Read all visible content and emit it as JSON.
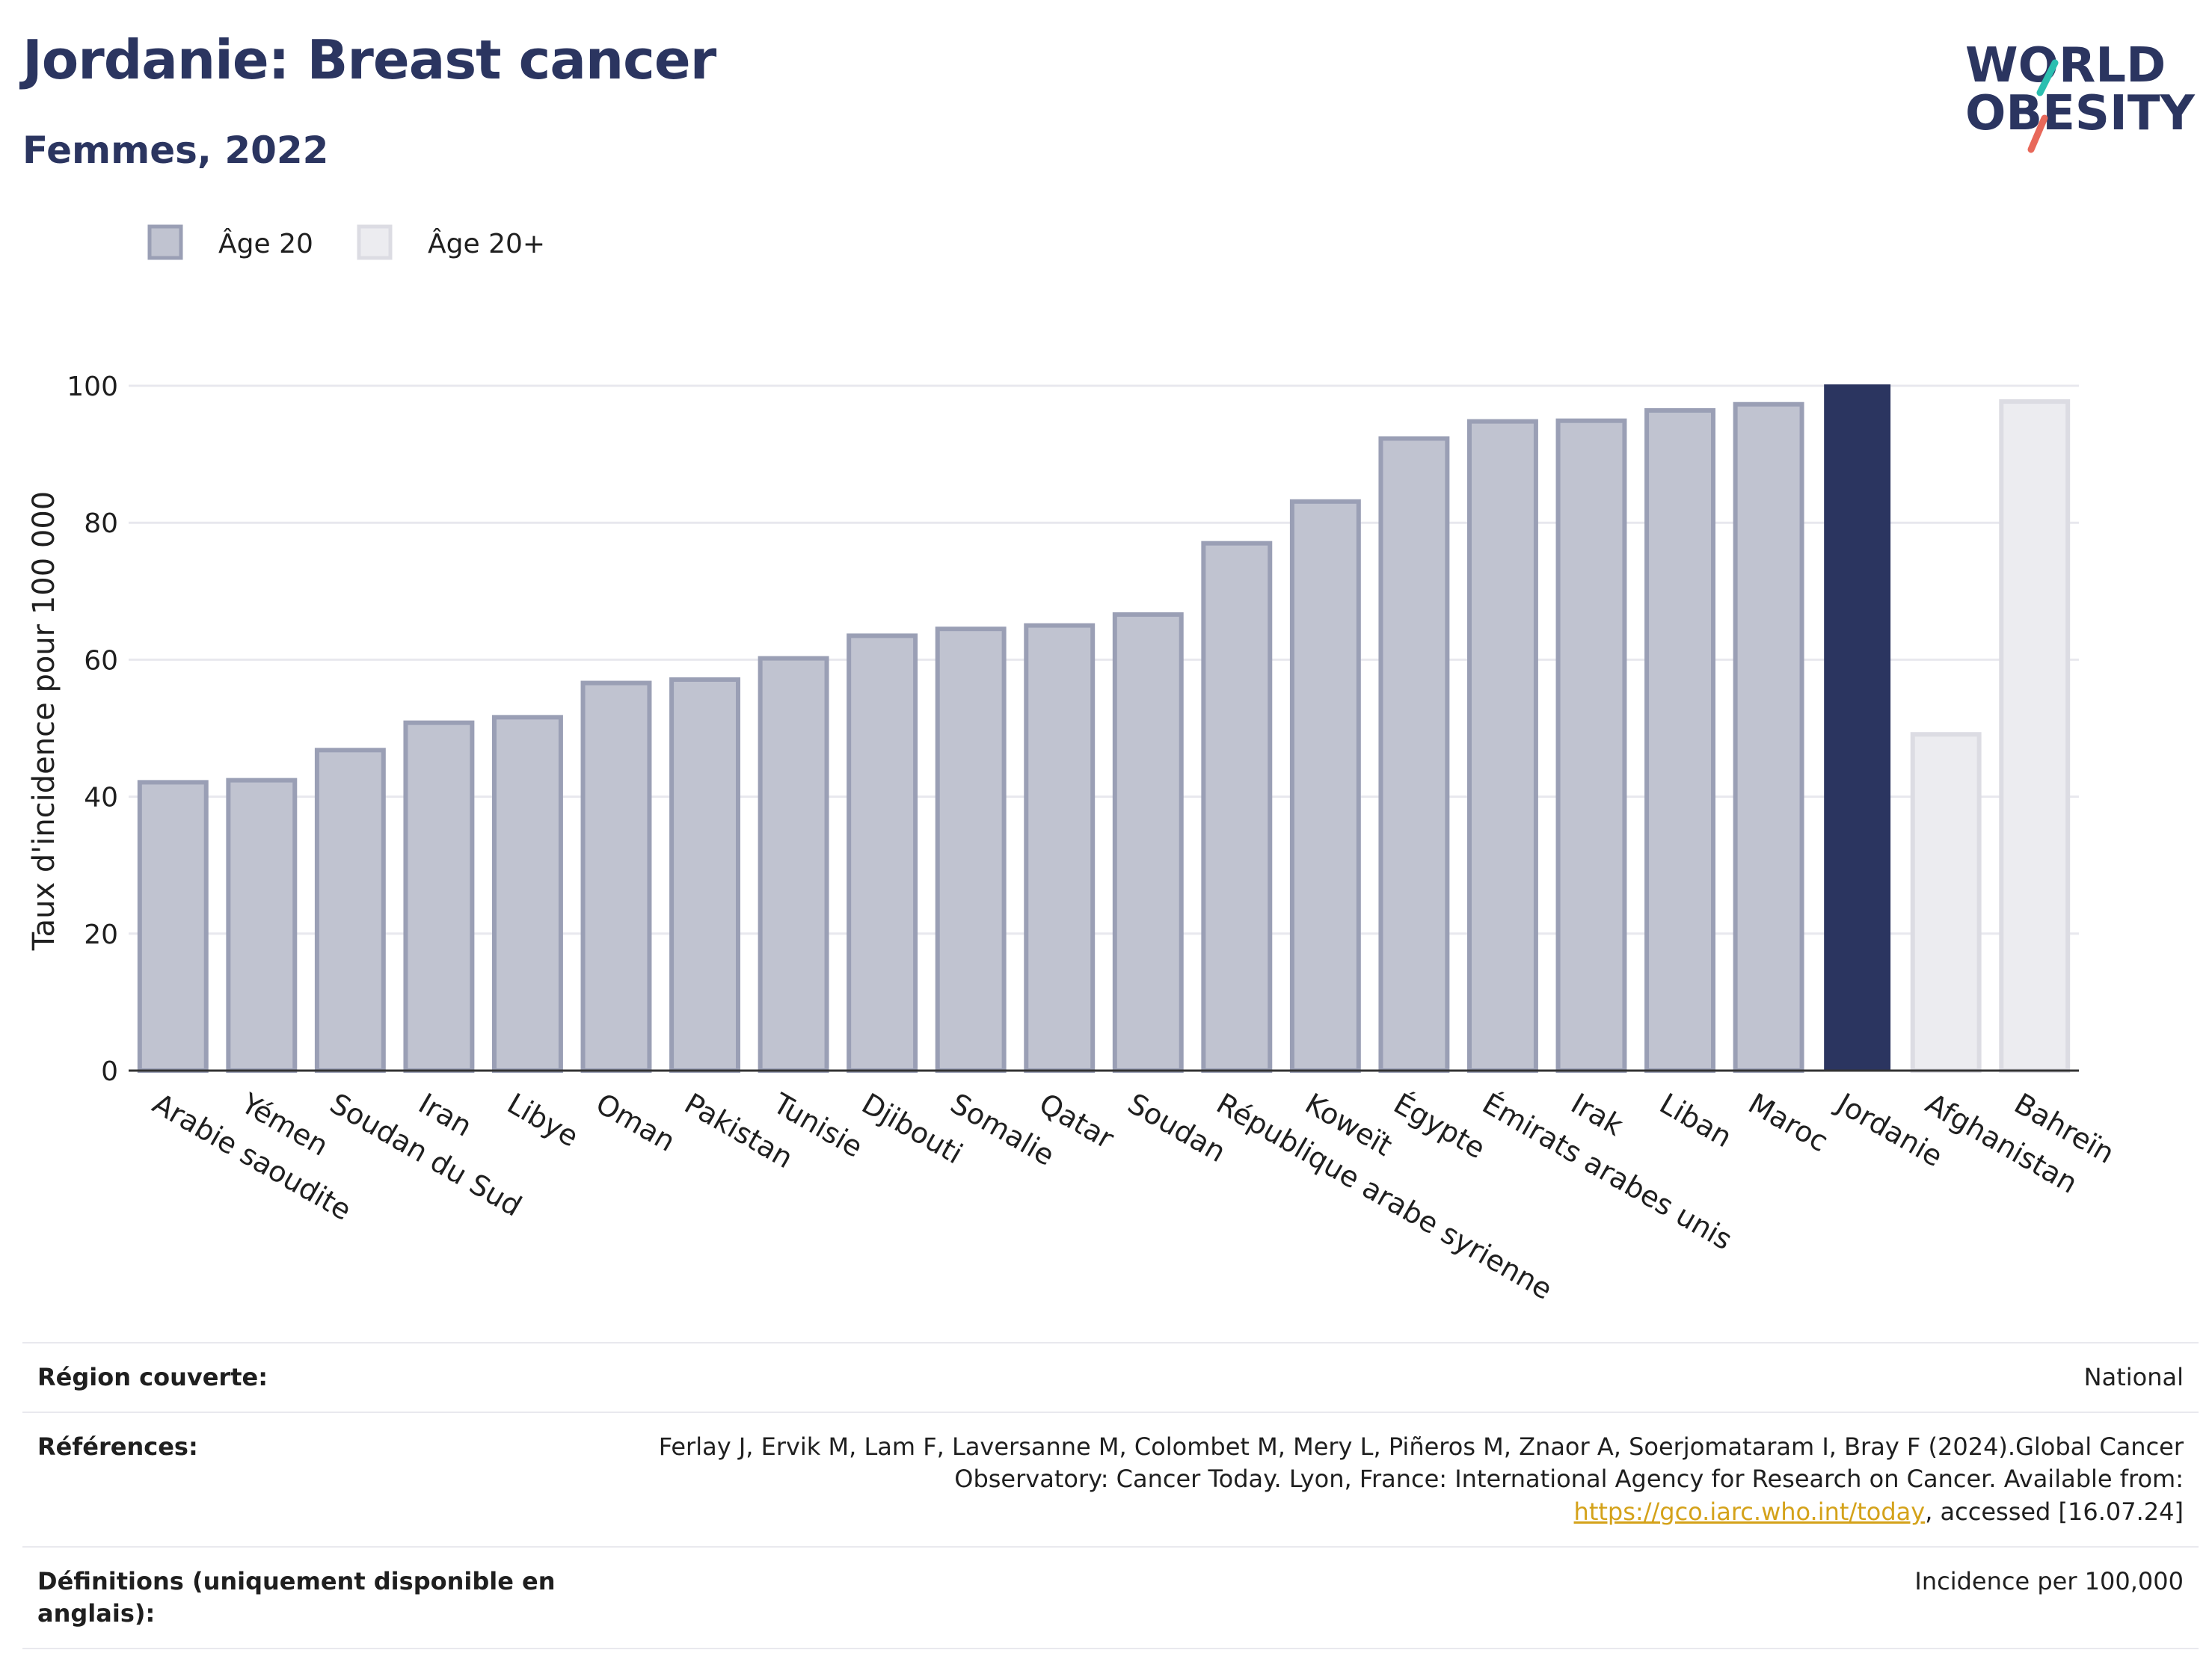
{
  "header": {
    "title": "Jordanie: Breast cancer",
    "subtitle": "Femmes, 2022"
  },
  "logo": {
    "line1": "WORLD",
    "line2": "OBESITY",
    "accent_colors": [
      "#2bbfb0",
      "#e8685a"
    ]
  },
  "legend": {
    "items": [
      {
        "label": "Âge 20",
        "color": "#c0c3d0",
        "border": "#9a9fb5"
      },
      {
        "label": "Âge 20+",
        "color": "#ececf0",
        "border": "#dcdce3"
      }
    ]
  },
  "chart_data": {
    "type": "bar",
    "ylabel": "Taux d'incidence pour 100 000",
    "xlabel": "",
    "ylim": [
      0,
      100
    ],
    "yticks": [
      0,
      20,
      40,
      60,
      80,
      100
    ],
    "grid": true,
    "categories": [
      "Arabie saoudite",
      "Yémen",
      "Soudan du Sud",
      "Iran",
      "Libye",
      "Oman",
      "Pakistan",
      "Tunisie",
      "Djibouti",
      "Somalie",
      "Qatar",
      "Soudan",
      "République arabe syrienne",
      "Koweït",
      "Égypte",
      "Émirats arabes unis",
      "Irak",
      "Liban",
      "Maroc",
      "Jordanie",
      "Afghanistan",
      "Bahreïn"
    ],
    "values": [
      42.1,
      42.4,
      46.8,
      50.8,
      51.6,
      56.6,
      57.1,
      60.2,
      63.5,
      64.5,
      65.0,
      66.6,
      77.0,
      83.1,
      92.3,
      94.8,
      94.9,
      96.4,
      97.3,
      100.2,
      49.1,
      97.7
    ],
    "groups": [
      "Âge 20",
      "Âge 20",
      "Âge 20",
      "Âge 20",
      "Âge 20",
      "Âge 20",
      "Âge 20",
      "Âge 20",
      "Âge 20",
      "Âge 20",
      "Âge 20",
      "Âge 20",
      "Âge 20",
      "Âge 20",
      "Âge 20",
      "Âge 20",
      "Âge 20",
      "Âge 20",
      "Âge 20",
      "Âge 20",
      "Âge 20+",
      "Âge 20+"
    ],
    "highlight": "Jordanie",
    "colors": {
      "Âge 20": {
        "fill": "#c0c3d0",
        "stroke": "#9a9fb5"
      },
      "Âge 20+": {
        "fill": "#ececf0",
        "stroke": "#dcdce3"
      },
      "highlight": {
        "fill": "#2b3560",
        "stroke": "#2b3560"
      }
    }
  },
  "info": {
    "region_label": "Région couverte:",
    "region_value": "National",
    "references_label": "Références:",
    "references_text": "Ferlay J, Ervik M, Lam F, Laversanne M, Colombet M, Mery L, Piñeros M, Znaor A, Soerjomataram I, Bray F (2024).Global Cancer Observatory: Cancer Today. Lyon, France: International Agency for Research on Cancer. Available from: ",
    "references_link": "https://gco.iarc.who.int/today",
    "references_tail": ", accessed [16.07.24]",
    "definitions_label": "Définitions (uniquement disponible en anglais):",
    "definitions_value": "Incidence per 100,000"
  }
}
